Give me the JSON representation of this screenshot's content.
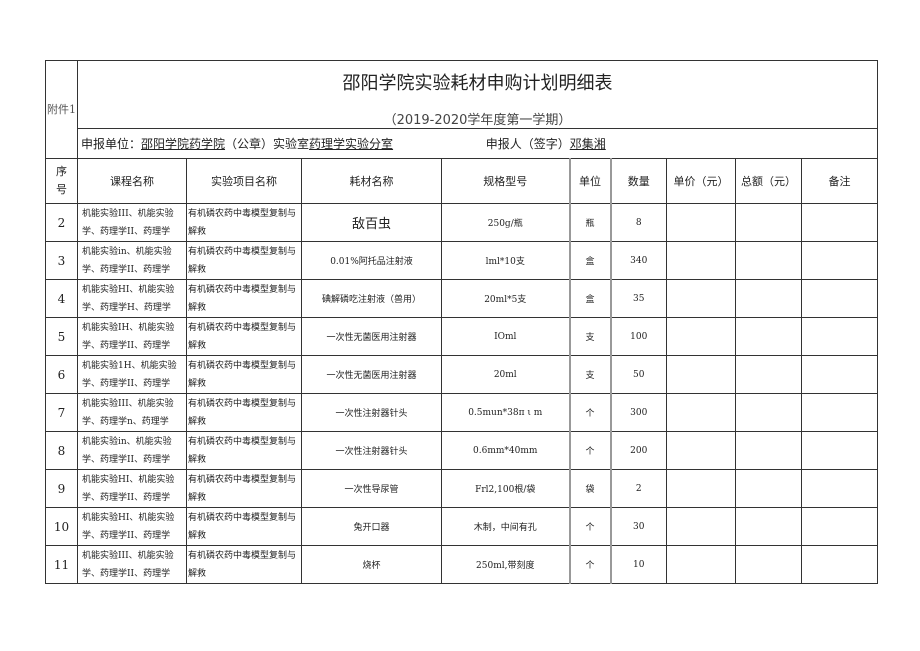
{
  "annex_label": "附件1",
  "title": "邵阳学院实验耗材申购计划明细表",
  "subtitle": "（2019-2020学年度第一学期）",
  "applicant": {
    "unit_label": "申报单位：",
    "unit_value": "邵阳学院药学院",
    "seal_label": "（公章）实验室",
    "lab_value": "药理学实验分室",
    "person_label": "申报人（签字）",
    "person_value": "邓集湘"
  },
  "headers": [
    "序号",
    "课程名称",
    "实验项目名称",
    "耗材名称",
    "规格型号",
    "单位",
    "数量",
    "单价（元）",
    "总额（元）",
    "备注"
  ],
  "rows": [
    {
      "seq": "2",
      "course": "机能实验III、机能实验学、药理学II、药理学",
      "experiment": "有机磷农药中毒模型复制与解救",
      "material": "敌百虫",
      "spec": "250g/瓶",
      "unit": "瓶",
      "qty": "8"
    },
    {
      "seq": "3",
      "course": "机能实验in、机能实验学、药理学II、药理学",
      "experiment": "有机磷农药中毒模型复制与解救",
      "material": "0.01%阿托品注射液",
      "spec": "lml*10支",
      "unit": "盒",
      "qty": "340"
    },
    {
      "seq": "4",
      "course": "机能实验HI、机能实验学、药理学H、药理学",
      "experiment": "有机磷农药中毒模型复制与解救",
      "material": "碘解磷吃注射液（兽用）",
      "spec": "20ml*5支",
      "unit": "盒",
      "qty": "35"
    },
    {
      "seq": "5",
      "course": "机能实验IH、机能实验学、药理学II、药理学",
      "experiment": "有机磷农药中毒模型复制与解救",
      "material": "一次性无菌医用注射器",
      "spec": "IOml",
      "unit": "支",
      "qty": "100"
    },
    {
      "seq": "6",
      "course": "机能实验1H、机能实验学、药理学II、药理学",
      "experiment": "有机磷农药中毒模型复制与解救",
      "material": "一次性无菌医用注射器",
      "spec": "20ml",
      "unit": "支",
      "qty": "50"
    },
    {
      "seq": "7",
      "course": "机能实验III、机能实验学、药理学n、药理学",
      "experiment": "有机磷农药中毒模型复制与解救",
      "material": "一次性注射器针头",
      "spec": "0.5mun*38π ι m",
      "unit": "个",
      "qty": "300"
    },
    {
      "seq": "8",
      "course": "机能实验in、机能实验学、药理学II、药理学",
      "experiment": "有机磷农药中毒模型复制与解救",
      "material": "一次性注射器针头",
      "spec": "0.6mm*40mm",
      "unit": "个",
      "qty": "200"
    },
    {
      "seq": "9",
      "course": "机能实验HI、机能实验学、药理学II、药理学",
      "experiment": "有机磷农药中毒模型复制与解救",
      "material": "一次性导尿管",
      "spec": "Frl2,100根/袋",
      "unit": "袋",
      "qty": "2"
    },
    {
      "seq": "10",
      "course": "机能实验HI、机能实验学、药理学II、药理学",
      "experiment": "有机磷农药中毒模型复制与解救",
      "material": "兔开口器",
      "spec": "木制，中间有孔",
      "unit": "个",
      "qty": "30"
    },
    {
      "seq": "11",
      "course": "机能实验III、机能实验学、药理学II、药理学",
      "experiment": "有机磷农药中毒模型复制与解救",
      "material": "烧杯",
      "spec": "250ml,带刻度",
      "unit": "个",
      "qty": "10"
    }
  ]
}
